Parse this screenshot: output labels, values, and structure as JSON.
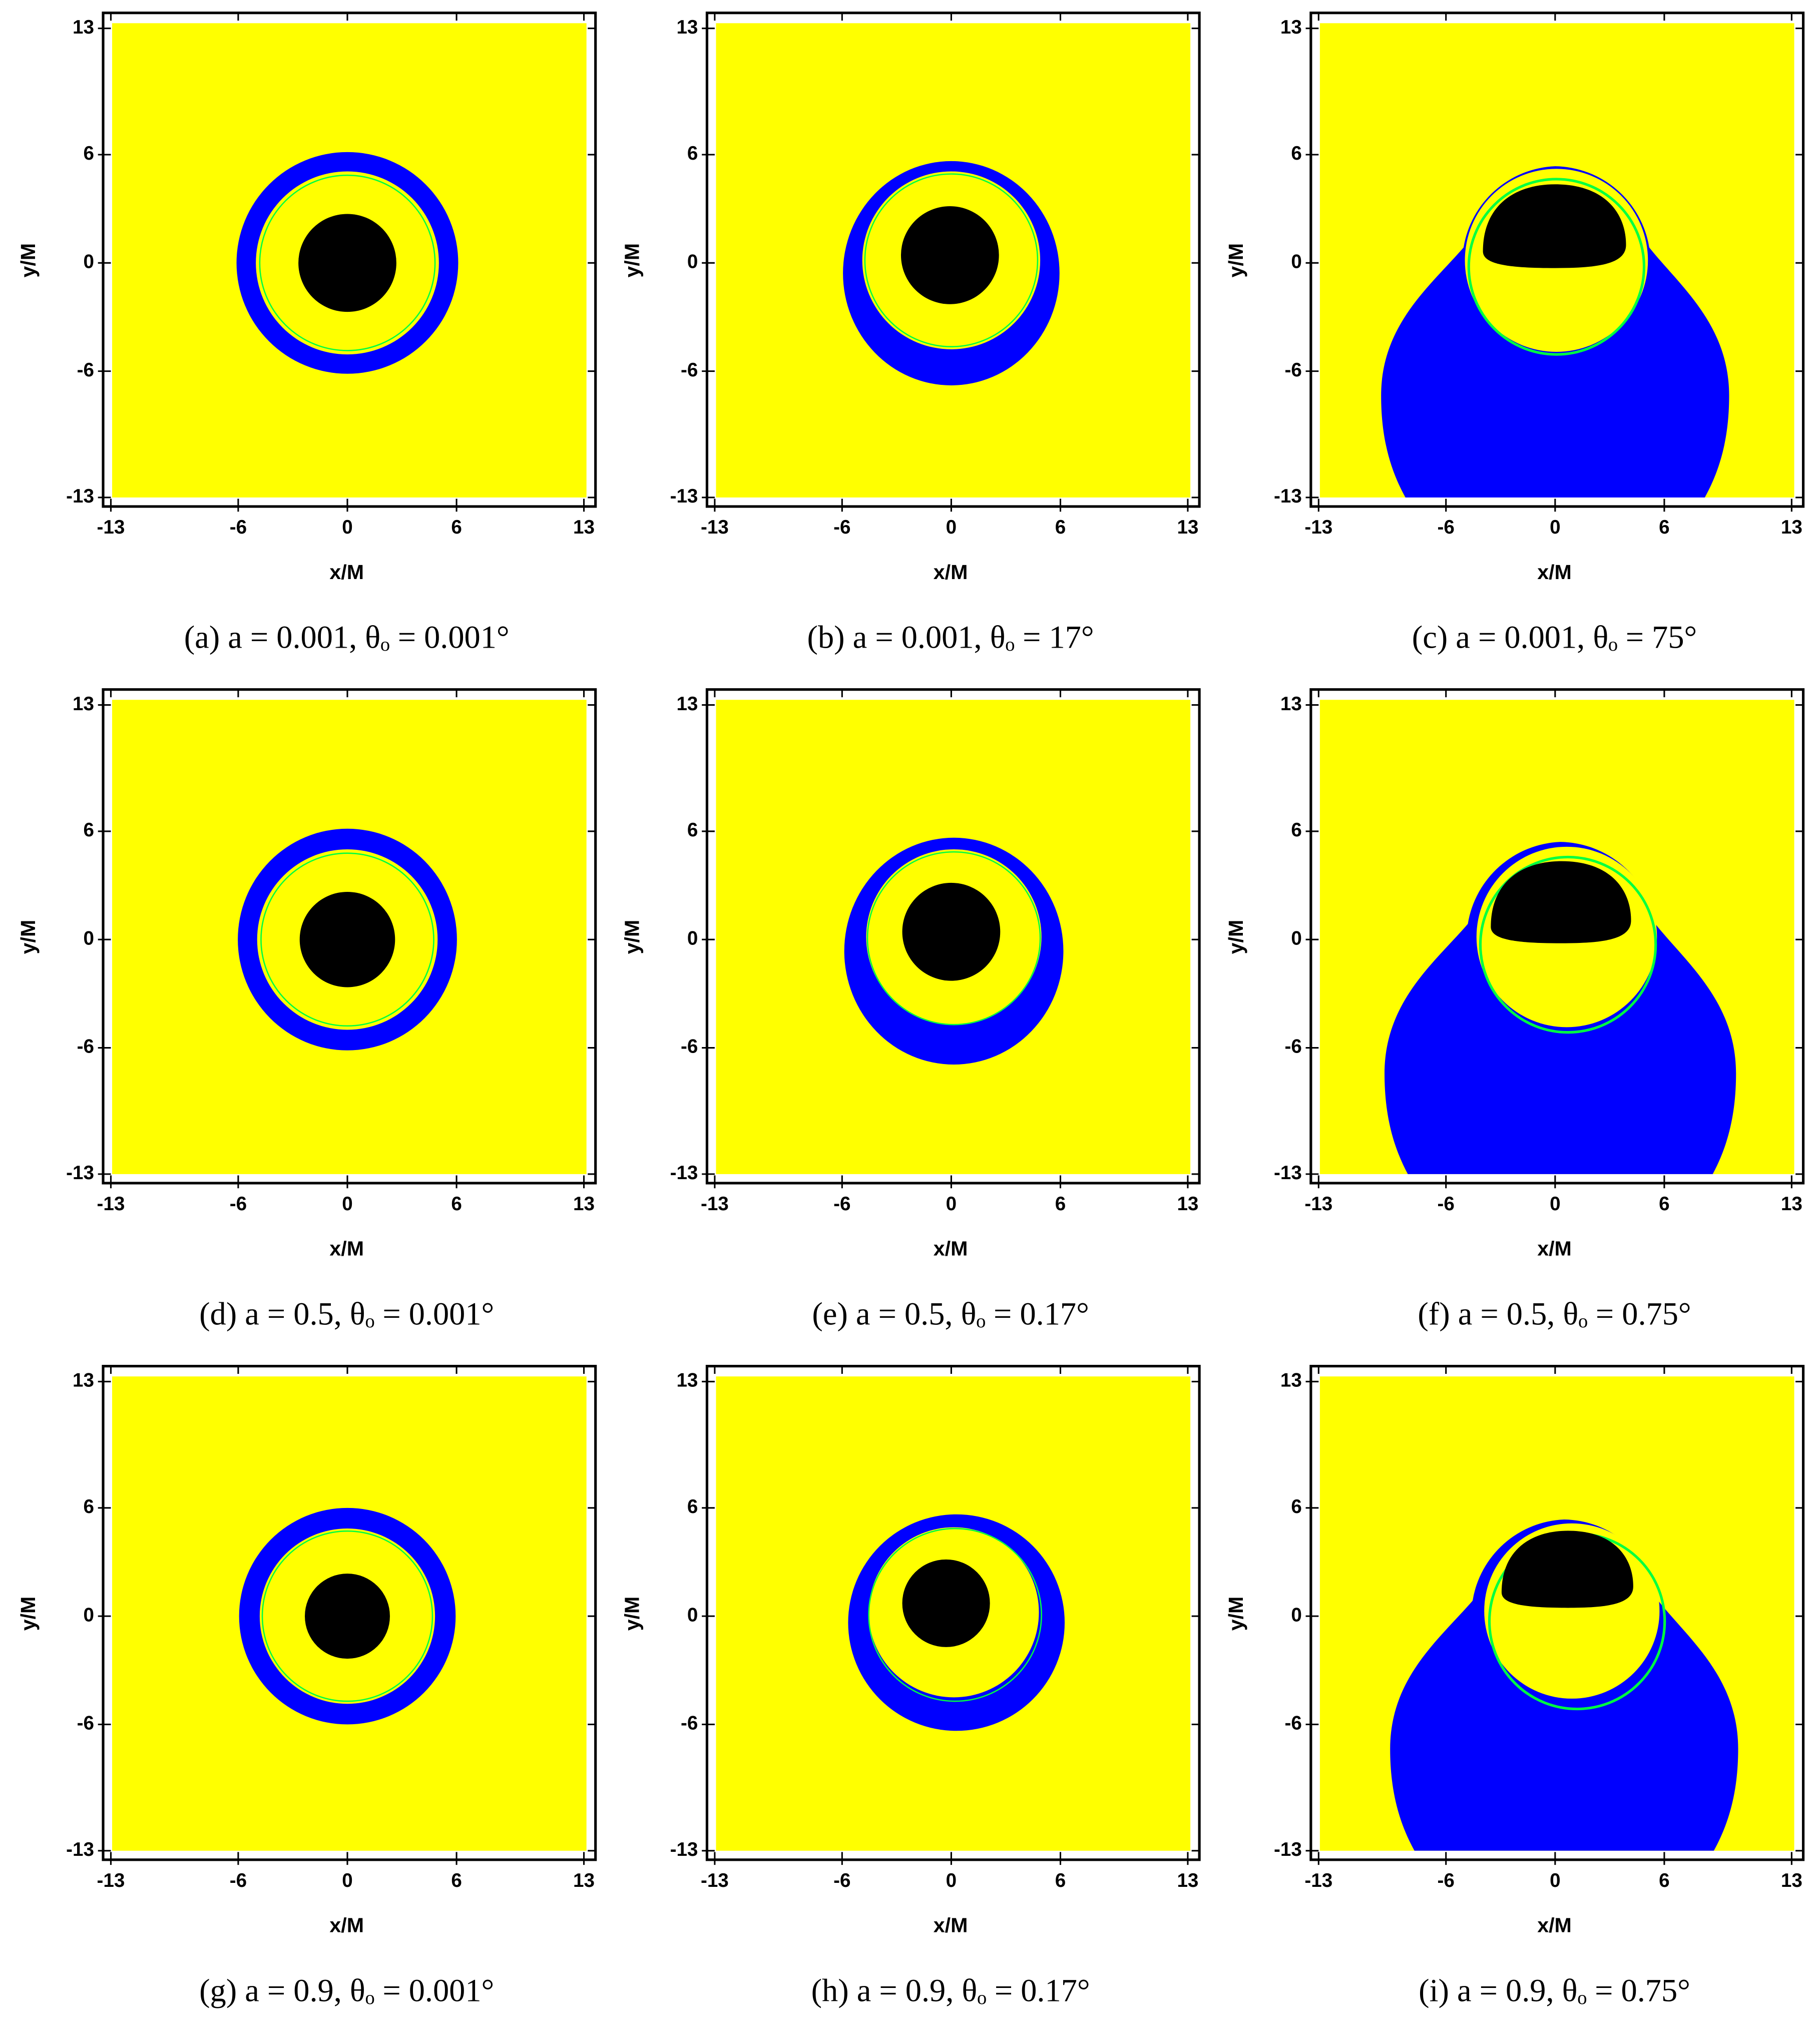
{
  "chart_data": [
    {
      "type": "shadow",
      "caption": "(a) a = 0.001, θₒ = 0.001°",
      "xlabel": "x/M",
      "ylabel": "y/M",
      "xlim": [
        -13,
        13
      ],
      "ylim": [
        -13,
        13
      ],
      "xticks": [
        -13,
        -6,
        0,
        6,
        13
      ],
      "yticks": [
        -13,
        -6,
        0,
        6,
        13
      ]
    },
    {
      "type": "shadow",
      "caption": "(b) a = 0.001, θₒ = 17°",
      "xlabel": "x/M",
      "ylabel": "y/M",
      "xlim": [
        -13,
        13
      ],
      "ylim": [
        -13,
        13
      ],
      "xticks": [
        -13,
        -6,
        0,
        6,
        13
      ],
      "yticks": [
        -13,
        -6,
        0,
        6,
        13
      ]
    },
    {
      "type": "shadow",
      "caption": "(c) a = 0.001, θₒ = 75°",
      "xlabel": "x/M",
      "ylabel": "y/M",
      "xlim": [
        -13,
        13
      ],
      "ylim": [
        -13,
        13
      ],
      "xticks": [
        -13,
        -6,
        0,
        6,
        13
      ],
      "yticks": [
        -13,
        -6,
        0,
        6,
        13
      ]
    },
    {
      "type": "shadow",
      "caption": "(d) a = 0.5, θₒ = 0.001°",
      "xlabel": "x/M",
      "ylabel": "y/M",
      "xlim": [
        -13,
        13
      ],
      "ylim": [
        -13,
        13
      ],
      "xticks": [
        -13,
        -6,
        0,
        6,
        13
      ],
      "yticks": [
        -13,
        -6,
        0,
        6,
        13
      ]
    },
    {
      "type": "shadow",
      "caption": "(e) a = 0.5, θₒ = 0.17°",
      "xlabel": "x/M",
      "ylabel": "y/M",
      "xlim": [
        -13,
        13
      ],
      "ylim": [
        -13,
        13
      ],
      "xticks": [
        -13,
        -6,
        0,
        6,
        13
      ],
      "yticks": [
        -13,
        -6,
        0,
        6,
        13
      ]
    },
    {
      "type": "shadow",
      "caption": "(f) a = 0.5, θₒ = 0.75°",
      "xlabel": "x/M",
      "ylabel": "y/M",
      "xlim": [
        -13,
        13
      ],
      "ylim": [
        -13,
        13
      ],
      "xticks": [
        -13,
        -6,
        0,
        6,
        13
      ],
      "yticks": [
        -13,
        -6,
        0,
        6,
        13
      ]
    },
    {
      "type": "shadow",
      "caption": "(g) a = 0.9, θₒ = 0.001°",
      "xlabel": "x/M",
      "ylabel": "y/M",
      "xlim": [
        -13,
        13
      ],
      "ylim": [
        -13,
        13
      ],
      "xticks": [
        -13,
        -6,
        0,
        6,
        13
      ],
      "yticks": [
        -13,
        -6,
        0,
        6,
        13
      ]
    },
    {
      "type": "shadow",
      "caption": "(h) a = 0.9, θₒ = 0.17°",
      "xlabel": "x/M",
      "ylabel": "y/M",
      "xlim": [
        -13,
        13
      ],
      "ylim": [
        -13,
        13
      ],
      "xticks": [
        -13,
        -6,
        0,
        6,
        13
      ],
      "yticks": [
        -13,
        -6,
        0,
        6,
        13
      ]
    },
    {
      "type": "shadow",
      "caption": "(i) a = 0.9, θₒ = 0.75°",
      "xlabel": "x/M",
      "ylabel": "y/M",
      "xlim": [
        -13,
        13
      ],
      "ylim": [
        -13,
        13
      ],
      "xticks": [
        -13,
        -6,
        0,
        6,
        13
      ],
      "yticks": [
        -13,
        -6,
        0,
        6,
        13
      ]
    }
  ]
}
